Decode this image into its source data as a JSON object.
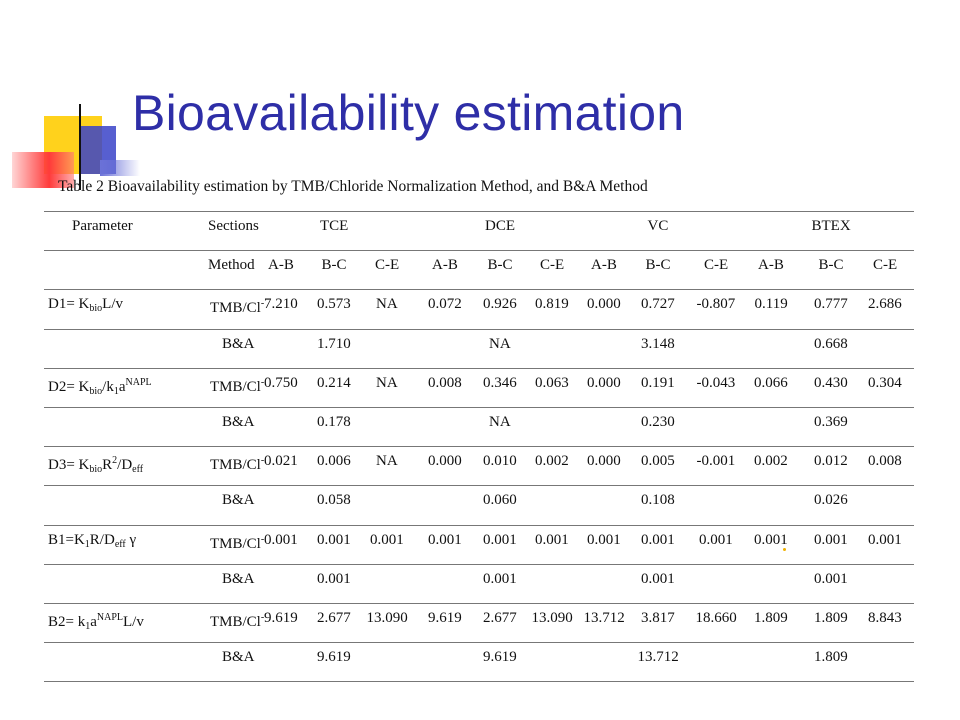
{
  "slide": {
    "title": "Bioavailability estimation",
    "caption": "Table 2 Bioavailability estimation by TMB/Chloride Normalization Method, and B&A Method"
  },
  "table": {
    "header": {
      "parameter": "Parameter",
      "sections": "Sections",
      "groups": [
        "TCE",
        "DCE",
        "VC",
        "BTEX"
      ]
    },
    "subheader": {
      "method": "Method",
      "cols": [
        "A-B",
        "B-C",
        "C-E",
        "A-B",
        "B-C",
        "C-E",
        "A-B",
        "B-C",
        "C-E",
        "A-B",
        "B-C",
        "C-E"
      ]
    },
    "rows": [
      {
        "param": "D1= K<sub>bio</sub>L/v",
        "method": "TMB/Cl<sup>-</sup>",
        "values": [
          "7.210",
          "0.573",
          "NA",
          "0.072",
          "0.926",
          "0.819",
          "0.000",
          "0.727",
          "-0.807",
          "0.119",
          "0.777",
          "2.686"
        ]
      },
      {
        "param": "",
        "method": "B&A",
        "values": [
          "",
          "1.710",
          "",
          "",
          "NA",
          "",
          "",
          "3.148",
          "",
          "",
          "0.668",
          ""
        ]
      },
      {
        "param": "D2= K<sub>bio</sub>/k<sub>1</sub>a<sup>NAPL</sup>",
        "method": "TMB/Cl<sup>-</sup>",
        "values": [
          "0.750",
          "0.214",
          "NA",
          "0.008",
          "0.346",
          "0.063",
          "0.000",
          "0.191",
          "-0.043",
          "0.066",
          "0.430",
          "0.304"
        ]
      },
      {
        "param": "",
        "method": "B&A",
        "values": [
          "",
          "0.178",
          "",
          "",
          "NA",
          "",
          "",
          "0.230",
          "",
          "",
          "0.369",
          ""
        ]
      },
      {
        "param": "D3= K<sub>bio</sub>R<sup>2</sup>/D<sub>eff</sub>",
        "method": "TMB/Cl<sup>-</sup>",
        "values": [
          "0.021",
          "0.006",
          "NA",
          "0.000",
          "0.010",
          "0.002",
          "0.000",
          "0.005",
          "-0.001",
          "0.002",
          "0.012",
          "0.008"
        ]
      },
      {
        "param": "",
        "method": "B&A",
        "values": [
          "",
          "0.058",
          "",
          "",
          "0.060",
          "",
          "",
          "0.108",
          "",
          "",
          "0.026",
          ""
        ]
      },
      {
        "param": "B1=K<sub>1</sub>R/D<sub>eff</sub> γ",
        "method": "TMB/Cl<sup>-</sup>",
        "values": [
          "0.001",
          "0.001",
          "0.001",
          "0.001",
          "0.001",
          "0.001",
          "0.001",
          "0.001",
          "0.001",
          "0.001",
          "0.001",
          "0.001"
        ]
      },
      {
        "param": "",
        "method": "B&A",
        "values": [
          "",
          "0.001",
          "",
          "",
          "0.001",
          "",
          "",
          "0.001",
          "",
          "",
          "0.001",
          ""
        ]
      },
      {
        "param": "B2= k<sub>1</sub>a<sup>NAPL</sup>L/v",
        "method": "TMB/Cl<sup>-</sup>",
        "values": [
          "9.619",
          "2.677",
          "13.090",
          "9.619",
          "2.677",
          "13.090",
          "13.712",
          "3.817",
          "18.660",
          "1.809",
          "1.809",
          "8.843"
        ]
      },
      {
        "param": "",
        "method": "B&A",
        "values": [
          "",
          "9.619",
          "",
          "",
          "9.619",
          "",
          "",
          "13.712",
          "",
          "",
          "1.809",
          ""
        ]
      }
    ]
  }
}
